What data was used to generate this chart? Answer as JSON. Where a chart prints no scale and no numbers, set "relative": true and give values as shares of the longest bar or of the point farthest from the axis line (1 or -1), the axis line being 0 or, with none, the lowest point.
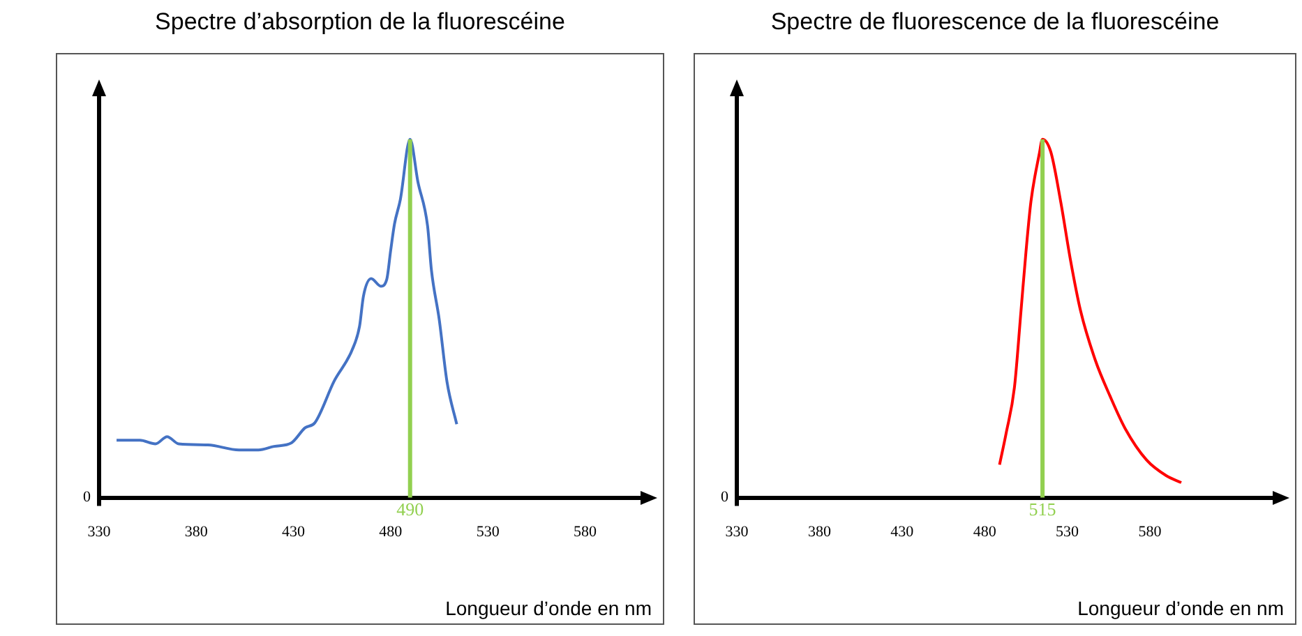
{
  "chart_data": [
    {
      "type": "line",
      "title": "Spectre d’absorption de la fluorescéine",
      "xlabel": "Longueur d’onde en nm",
      "relative": true,
      "tick_labels": "x",
      "xlim": [
        330,
        610
      ],
      "xticks": [
        330,
        380,
        430,
        480,
        530,
        580
      ],
      "series": [
        {
          "color": "#4472c4",
          "x": [
            339,
            351,
            359,
            365,
            371,
            386,
            402,
            412,
            420,
            429,
            436,
            441,
            451,
            460,
            464,
            466,
            470,
            475,
            478,
            480,
            482,
            485,
            490,
            494,
            499,
            501,
            505,
            509,
            514
          ],
          "values": [
            0.16,
            0.16,
            0.15,
            0.17,
            0.15,
            0.147,
            0.133,
            0.133,
            0.143,
            0.153,
            0.195,
            0.209,
            0.326,
            0.41,
            0.478,
            0.562,
            0.611,
            0.59,
            0.609,
            0.689,
            0.764,
            0.832,
            1.0,
            0.882,
            0.758,
            0.634,
            0.497,
            0.323,
            0.205
          ]
        }
      ],
      "ref_lines": [
        {
          "axis": "x",
          "value": 490,
          "label": "490",
          "color": "#92d050"
        }
      ],
      "annotations": [
        "0"
      ]
    },
    {
      "type": "line",
      "title": "Spectre de fluorescence de la fluorescéine",
      "xlabel": "Longueur d’onde en nm",
      "relative": true,
      "tick_labels": "x",
      "xlim": [
        330,
        656
      ],
      "xticks": [
        330,
        380,
        430,
        480,
        530,
        580
      ],
      "series": [
        {
          "color": "#ff0000",
          "x": [
            489,
            493,
            498,
            502,
            505,
            508,
            513,
            515,
            520,
            526,
            532,
            538,
            547,
            556,
            565,
            578,
            590,
            599
          ],
          "values": [
            0.092,
            0.18,
            0.307,
            0.522,
            0.686,
            0.826,
            0.958,
            1.0,
            0.965,
            0.826,
            0.661,
            0.522,
            0.383,
            0.282,
            0.193,
            0.105,
            0.061,
            0.042
          ]
        }
      ],
      "ref_lines": [
        {
          "axis": "x",
          "value": 515,
          "label": "515",
          "color": "#92d050"
        }
      ],
      "annotations": [
        "0"
      ]
    }
  ]
}
